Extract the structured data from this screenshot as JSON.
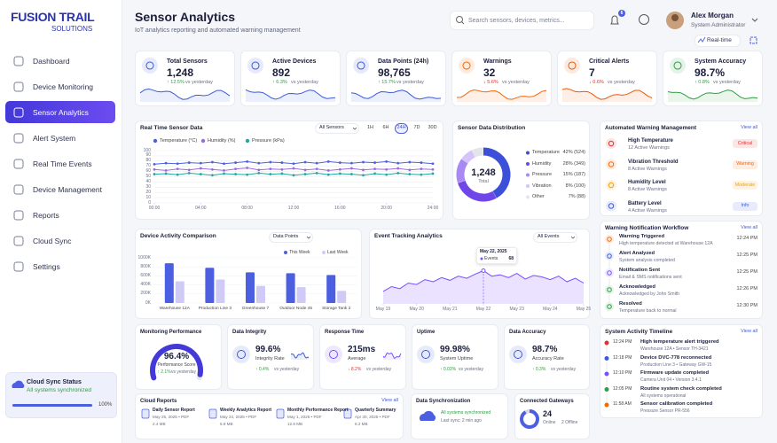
{
  "brand": {
    "name": "FUSION TRAIL",
    "tagline": "SOLUTIONS"
  },
  "sidebar": {
    "nav": [
      {
        "label": "Dashboard"
      },
      {
        "label": "Device Monitoring"
      },
      {
        "label": "Sensor Analytics",
        "active": true
      },
      {
        "label": "Alert System"
      },
      {
        "label": "Real Time Events"
      },
      {
        "label": "Device Management"
      },
      {
        "label": "Reports"
      },
      {
        "label": "Cloud Sync"
      },
      {
        "label": "Settings"
      }
    ],
    "sync": {
      "title": "Cloud Sync Status",
      "status": "All systems synchronized",
      "progress": 100,
      "progress_label": "100%"
    }
  },
  "header": {
    "title": "Sensor Analytics",
    "subtitle": "IoT analytics reporting and automated warning management",
    "search_placeholder": "Search sensors, devices, metrics...",
    "notifications": "6",
    "user": {
      "name": "Alex Morgan",
      "role": "System Administrator"
    },
    "mode": "Real-time"
  },
  "kpis": [
    {
      "label": "Total Sensors",
      "value": "1,248",
      "trend": "↑ 12.5%",
      "note": "vs yesterday",
      "color": "#3b5bdb"
    },
    {
      "label": "Active Devices",
      "value": "892",
      "trend": "↑ 6.3%",
      "note": "vs yesterday",
      "color": "#3b5bdb"
    },
    {
      "label": "Data Points (24h)",
      "value": "98,765",
      "trend": "↑ 15.7%",
      "note": "vs yesterday",
      "color": "#3b5bdb"
    },
    {
      "label": "Warnings",
      "value": "32",
      "trend": "↓ 5.6%",
      "note": "vs yesterday",
      "color": "#f76707"
    },
    {
      "label": "Critical Alerts",
      "value": "7",
      "trend": "↓ 0.6%",
      "note": "vs yesterday",
      "color": "#e8590c"
    },
    {
      "label": "System Accuracy",
      "value": "98.7%",
      "trend": "↑ 0.8%",
      "note": "vs yesterday",
      "color": "#2f9e44"
    }
  ],
  "sensor_chart": {
    "type": "line",
    "title": "Real Time Sensor Data",
    "filter": "All Sensors",
    "ranges": [
      {
        "label": "1H"
      },
      {
        "label": "6H"
      },
      {
        "label": "24H",
        "active": true
      },
      {
        "label": "7D"
      },
      {
        "label": "30D"
      }
    ],
    "x": [
      0,
      1,
      2,
      3,
      4,
      5,
      6,
      7,
      8,
      9,
      10,
      11,
      12,
      13,
      14,
      15,
      16,
      17,
      18,
      19,
      20,
      21,
      22,
      23,
      24
    ],
    "xlim": [
      0,
      24
    ],
    "xticks": [
      {
        "value": 0,
        "label": "00:00"
      },
      {
        "value": 4,
        "label": "04:00"
      },
      {
        "value": 8,
        "label": "08:00"
      },
      {
        "value": 12,
        "label": "12:00"
      },
      {
        "value": 16,
        "label": "16:00"
      },
      {
        "value": 20,
        "label": "20:00"
      },
      {
        "value": 24,
        "label": "24:00"
      }
    ],
    "ylim": [
      0,
      100
    ],
    "yticks": [
      0,
      10,
      20,
      30,
      40,
      50,
      60,
      70,
      80,
      90,
      100
    ],
    "grid": true,
    "series": [
      {
        "name": "Temperature (°C)",
        "color": "#4c5fe0",
        "values": [
          74,
          76,
          75,
          77,
          76,
          78,
          75,
          77,
          79,
          76,
          78,
          77,
          75,
          78,
          76,
          79,
          77,
          76,
          78,
          77,
          79,
          76,
          78,
          77,
          75
        ]
      },
      {
        "name": "Humidity (%)",
        "color": "#9c6ade",
        "values": [
          64,
          62,
          65,
          63,
          66,
          64,
          62,
          65,
          67,
          63,
          65,
          64,
          66,
          63,
          65,
          62,
          64,
          66,
          63,
          65,
          64,
          66,
          63,
          65,
          64
        ]
      },
      {
        "name": "Pressure (kPa)",
        "color": "#20a9a0",
        "values": [
          55,
          56,
          54,
          57,
          55,
          53,
          56,
          55,
          54,
          57,
          55,
          56,
          53,
          55,
          57,
          54,
          56,
          55,
          53,
          56,
          54,
          57,
          55,
          54,
          56
        ]
      }
    ]
  },
  "distribution": {
    "type": "pie",
    "title": "Sensor Data Distribution",
    "total": "1,248",
    "total_label": "Total",
    "categories": [
      "Temperature",
      "Humidity",
      "Pressure",
      "Vibration",
      "Other"
    ],
    "values": [
      42,
      28,
      15,
      8,
      7
    ],
    "value_labels": [
      "42% (524)",
      "28% (349)",
      "15% (187)",
      "8% (100)",
      "7% (88)"
    ],
    "colors": [
      "#3b4fd8",
      "#6f47e8",
      "#a98af5",
      "#d3c4fb",
      "#e3e5ec"
    ]
  },
  "warnings": {
    "title": "Automated Warning Management",
    "link": "View all",
    "items": [
      {
        "title": "High Temperature",
        "count": "12 Active Warnings",
        "level": "Critical",
        "color": "#e03131"
      },
      {
        "title": "Vibration Threshold",
        "count": "8 Active Warnings",
        "level": "Warning",
        "color": "#f76707"
      },
      {
        "title": "Humidity Level",
        "count": "8 Active Warnings",
        "level": "Moderate",
        "color": "#f59f00"
      },
      {
        "title": "Battery Level",
        "count": "4 Active Warnings",
        "level": "Info",
        "color": "#3b5bdb"
      }
    ]
  },
  "device_chart": {
    "type": "bar",
    "title": "Device Activity Comparison",
    "filter": "Data Points",
    "categories": [
      "Warehouse 12A",
      "Production Line 3",
      "Greenhouse 7",
      "Outdoor Node 45",
      "Storage Tank 2"
    ],
    "series": [
      {
        "name": "This Week",
        "color": "#4c5fe0",
        "values": [
          880,
          780,
          680,
          660,
          620
        ]
      },
      {
        "name": "Last Week",
        "color": "#cfcaf6",
        "values": [
          480,
          520,
          380,
          350,
          270
        ]
      }
    ],
    "ylim": [
      0,
      1000
    ],
    "yticks": [
      {
        "value": 0,
        "label": "0K"
      },
      {
        "value": 200,
        "label": "200K"
      },
      {
        "value": 400,
        "label": "400K"
      },
      {
        "value": 600,
        "label": "600K"
      },
      {
        "value": 800,
        "label": "800K"
      },
      {
        "value": 1000,
        "label": "1000K"
      }
    ]
  },
  "event_chart": {
    "type": "area",
    "title": "Event Tracking Analytics",
    "filter": "All Events",
    "color": "#7c4dff",
    "x": [
      0,
      0.25,
      0.5,
      0.75,
      1,
      1.25,
      1.5,
      1.75,
      2,
      2.25,
      2.5,
      2.75,
      3,
      3.25,
      3.5,
      3.75,
      4,
      4.25,
      4.5,
      4.75,
      5,
      5.25,
      5.5,
      5.75,
      6
    ],
    "values": [
      38,
      45,
      42,
      50,
      48,
      55,
      52,
      58,
      54,
      60,
      57,
      63,
      68,
      60,
      62,
      58,
      64,
      56,
      61,
      59,
      55,
      60,
      52,
      57,
      50
    ],
    "xlim": [
      0,
      6
    ],
    "xticks": [
      {
        "value": 0,
        "label": "May 19"
      },
      {
        "value": 1,
        "label": "May 20"
      },
      {
        "value": 2,
        "label": "May 21"
      },
      {
        "value": 3,
        "label": "May 22"
      },
      {
        "value": 4,
        "label": "May 23"
      },
      {
        "value": 5,
        "label": "May 24"
      },
      {
        "value": 6,
        "label": "May 25"
      }
    ],
    "ylim": [
      20,
      75
    ],
    "tooltip": {
      "date": "May 22, 2025",
      "label": "Events",
      "x": 3,
      "value": 68
    }
  },
  "workflow": {
    "title": "Warning Notification Workflow",
    "link": "View all",
    "steps": [
      {
        "title": "Warning Triggered",
        "detail": "High temperature detected at Warehouse 12A",
        "time": "12:24 PM",
        "color": "#f76707"
      },
      {
        "title": "Alert Analyzed",
        "detail": "System analysis completed",
        "time": "12:25 PM",
        "color": "#3b5bdb"
      },
      {
        "title": "Notification Sent",
        "detail": "Email & SMS notifications sent",
        "time": "12:25 PM",
        "color": "#7c4dff"
      },
      {
        "title": "Acknowledged",
        "detail": "Acknowledged by John Smith",
        "time": "12:26 PM",
        "color": "#2f9e44"
      },
      {
        "title": "Resolved",
        "detail": "Temperature back to normal",
        "time": "12:30 PM",
        "color": "#2f9e44"
      }
    ]
  },
  "metrics": [
    {
      "title": "Monitoring Performance",
      "value": "96.4%",
      "label": "Performance Score",
      "trend": "↑ 2.1%",
      "note": "vs yesterday"
    },
    {
      "title": "Data Integrity",
      "value": "99.6%",
      "label": "Integrity Rate",
      "trend": "↑ 0.4%",
      "note": "vs yesterday"
    },
    {
      "title": "Response Time",
      "value": "215ms",
      "label": "Average",
      "trend": "↓ 8.2%",
      "note": "vs yesterday"
    },
    {
      "title": "Uptime",
      "value": "99.98%",
      "label": "System Uptime",
      "trend": "↑ 0.02%",
      "note": "vs yesterday"
    },
    {
      "title": "Data Accuracy",
      "value": "98.7%",
      "label": "Accuracy Rate",
      "trend": "↑ 0.3%",
      "note": "vs yesterday"
    }
  ],
  "timeline": {
    "title": "System Activity Timeline",
    "link": "View all",
    "events": [
      {
        "time": "12:24 PM",
        "title": "High temperature alert triggered",
        "detail": "Warehouse 12A • Sensor TH-3421",
        "color": "#e03131"
      },
      {
        "time": "12:18 PM",
        "title": "Device DVC-778 reconnected",
        "detail": "Production Line 3 • Gateway GW-15",
        "color": "#3b5bdb"
      },
      {
        "time": "12:10 PM",
        "title": "Firmware update completed",
        "detail": "Camera Unit 04 • Version 3.4.1",
        "color": "#7c4dff"
      },
      {
        "time": "12:05 PM",
        "title": "Routine system check completed",
        "detail": "All systems operational",
        "color": "#2f9e44"
      },
      {
        "time": "11:58 AM",
        "title": "Sensor calibration completed",
        "detail": "Pressure Sensor PR-556",
        "color": "#f76707"
      }
    ]
  },
  "reports": {
    "title": "Cloud Reports",
    "link": "View all",
    "files": [
      {
        "name": "Daily Sensor Report",
        "meta": "May 25, 2025 • PDF",
        "size": "2.4 MB"
      },
      {
        "name": "Weekly Analytics Report",
        "meta": "May 24, 2025 • PDF",
        "size": "5.8 MB"
      },
      {
        "name": "Monthly Performance Report",
        "meta": "May 1, 2025 • PDF",
        "size": "12.6 MB"
      },
      {
        "name": "Quarterly Summary",
        "meta": "Apr 30, 2025 • PDF",
        "size": "8.2 MB"
      }
    ]
  },
  "sync": {
    "title": "Data Synchronization",
    "status": "All systems synchronized",
    "last": "Last sync: 2 min ago"
  },
  "gateways": {
    "title": "Connected Gateways",
    "online": 24,
    "online_label": "Online",
    "offline": 2,
    "offline_label": "Offline"
  }
}
